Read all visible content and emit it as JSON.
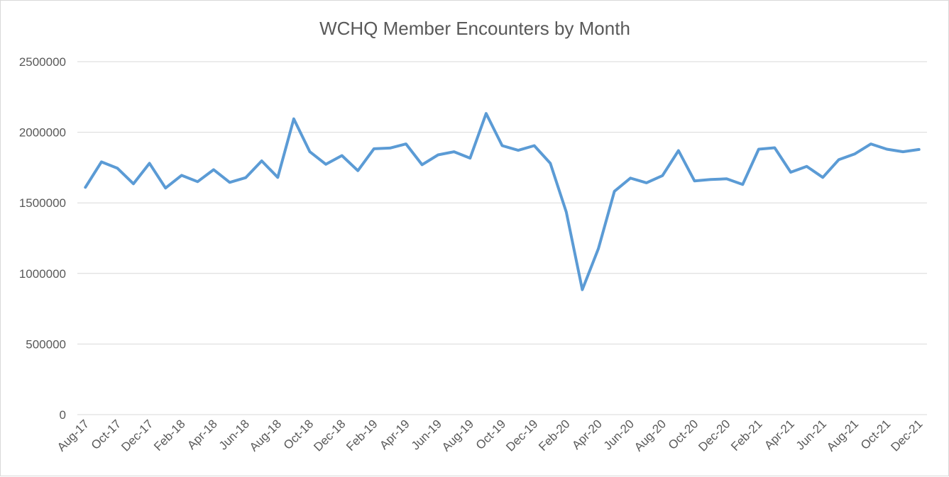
{
  "chart_data": {
    "type": "line",
    "title": "WCHQ Member Encounters by Month",
    "xlabel": "",
    "ylabel": "",
    "ylim": [
      0,
      2500000
    ],
    "yticks": [
      0,
      500000,
      1000000,
      1500000,
      2000000,
      2500000
    ],
    "grid": true,
    "legend": "none",
    "colors": {
      "series": "#5b9bd5",
      "grid": "#d9d9d9",
      "text": "#595959"
    },
    "categories": [
      "Aug-17",
      "Sep-17",
      "Oct-17",
      "Nov-17",
      "Dec-17",
      "Jan-18",
      "Feb-18",
      "Mar-18",
      "Apr-18",
      "May-18",
      "Jun-18",
      "Jul-18",
      "Aug-18",
      "Sep-18",
      "Oct-18",
      "Nov-18",
      "Dec-18",
      "Jan-19",
      "Feb-19",
      "Mar-19",
      "Apr-19",
      "May-19",
      "Jun-19",
      "Jul-19",
      "Aug-19",
      "Sep-19",
      "Oct-19",
      "Nov-19",
      "Dec-19",
      "Jan-20",
      "Feb-20",
      "Mar-20",
      "Apr-20",
      "May-20",
      "Jun-20",
      "Jul-20",
      "Aug-20",
      "Sep-20",
      "Oct-20",
      "Nov-20",
      "Dec-20",
      "Jan-21",
      "Feb-21",
      "Mar-21",
      "Apr-21",
      "May-21",
      "Jun-21",
      "Jul-21",
      "Aug-21",
      "Sep-21",
      "Oct-21",
      "Nov-21",
      "Dec-21"
    ],
    "tick_labels": [
      "Aug-17",
      "Oct-17",
      "Dec-17",
      "Feb-18",
      "Apr-18",
      "Jun-18",
      "Aug-18",
      "Oct-18",
      "Dec-18",
      "Feb-19",
      "Apr-19",
      "Jun-19",
      "Aug-19",
      "Oct-19",
      "Dec-19",
      "Feb-20",
      "Apr-20",
      "Jun-20",
      "Aug-20",
      "Oct-20",
      "Dec-20",
      "Feb-21",
      "Apr-21",
      "Jun-21",
      "Aug-21",
      "Oct-21",
      "Dec-21"
    ],
    "series": [
      {
        "values": [
          1610000,
          1790000,
          1745000,
          1635000,
          1780000,
          1605000,
          1695000,
          1650000,
          1735000,
          1645000,
          1678000,
          1797000,
          1680000,
          2095000,
          1862000,
          1773000,
          1835000,
          1728000,
          1883000,
          1888000,
          1917000,
          1770000,
          1840000,
          1862000,
          1817000,
          2133000,
          1905000,
          1872000,
          1905000,
          1780000,
          1435000,
          885000,
          1175000,
          1582000,
          1675000,
          1642000,
          1693000,
          1870000,
          1655000,
          1665000,
          1670000,
          1630000,
          1880000,
          1890000,
          1717000,
          1758000,
          1680000,
          1806000,
          1847000,
          1917000,
          1880000,
          1862000,
          1878000
        ]
      }
    ]
  }
}
